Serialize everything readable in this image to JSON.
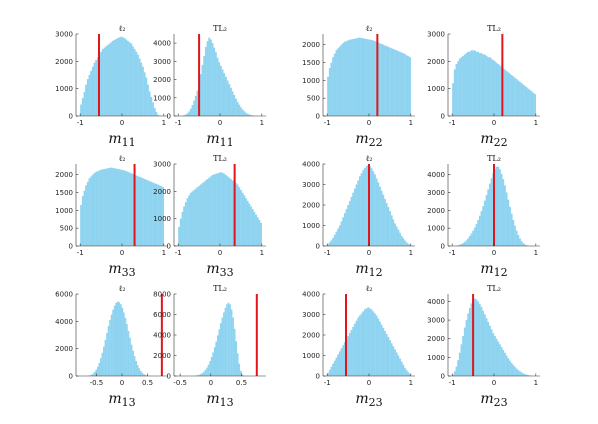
{
  "chart_data": [
    {
      "type": "bar",
      "title": "ℓ₂",
      "xlabel_main": "m",
      "xlabel_sub": "11",
      "xlim": [
        -1.1,
        1.1
      ],
      "ylim": [
        0,
        3000
      ],
      "xticks": [
        -1,
        0,
        1
      ],
      "xtick_labels": [
        "-1",
        "0",
        "1"
      ],
      "yticks": [
        0,
        1000,
        2000,
        3000
      ],
      "ytick_labels": [
        "0",
        "1000",
        "2000",
        "3000"
      ],
      "bins_start": -1.0,
      "bin_width": 0.04,
      "values": [
        420,
        650,
        880,
        1150,
        1350,
        1500,
        1650,
        1800,
        1950,
        2050,
        2150,
        2250,
        2350,
        2450,
        2500,
        2550,
        2600,
        2650,
        2700,
        2750,
        2780,
        2820,
        2850,
        2880,
        2900,
        2880,
        2850,
        2800,
        2750,
        2700,
        2650,
        2550,
        2450,
        2350,
        2250,
        2100,
        1950,
        1800,
        1600,
        1400,
        1150,
        900,
        700,
        500,
        300,
        150,
        50,
        20,
        5,
        2
      ],
      "marker_x": -0.55
    },
    {
      "type": "bar",
      "title": "TL₂",
      "xlabel_main": "m",
      "xlabel_sub": "11",
      "xlim": [
        -1.1,
        1.1
      ],
      "ylim": [
        0,
        4500
      ],
      "xticks": [
        -1,
        0,
        1
      ],
      "xtick_labels": [
        "-1",
        "0",
        "1"
      ],
      "yticks": [
        0,
        1000,
        2000,
        3000,
        4000
      ],
      "ytick_labels": [
        "0",
        "1000",
        "2000",
        "3000",
        "4000"
      ],
      "bins_start": -1.0,
      "bin_width": 0.04,
      "values": [
        5,
        10,
        20,
        40,
        80,
        150,
        250,
        400,
        600,
        850,
        1100,
        1400,
        1800,
        2300,
        2800,
        3300,
        3800,
        4100,
        4300,
        4200,
        4000,
        3750,
        3500,
        3200,
        2950,
        2750,
        2550,
        2350,
        2150,
        1950,
        1750,
        1550,
        1350,
        1150,
        950,
        780,
        620,
        480,
        360,
        260,
        180,
        120,
        80,
        50,
        30,
        15,
        8,
        4,
        2,
        1
      ],
      "marker_x": -0.5
    },
    {
      "type": "bar",
      "title": "ℓ₂",
      "xlabel_main": "m",
      "xlabel_sub": "22",
      "xlim": [
        -1.1,
        1.1
      ],
      "ylim": [
        0,
        2300
      ],
      "xticks": [
        -1,
        0,
        1
      ],
      "xtick_labels": [
        "-1",
        "0",
        "1"
      ],
      "yticks": [
        0,
        500,
        1000,
        1500,
        2000
      ],
      "ytick_labels": [
        "0",
        "500",
        "1000",
        "1500",
        "2000"
      ],
      "bins_start": -1.0,
      "bin_width": 0.04,
      "values": [
        1100,
        1350,
        1500,
        1650,
        1750,
        1850,
        1900,
        1950,
        2000,
        2050,
        2080,
        2100,
        2120,
        2140,
        2150,
        2160,
        2170,
        2180,
        2190,
        2200,
        2190,
        2180,
        2170,
        2160,
        2150,
        2140,
        2130,
        2120,
        2100,
        2080,
        2060,
        2040,
        2020,
        2000,
        1980,
        1960,
        1940,
        1920,
        1900,
        1880,
        1860,
        1840,
        1820,
        1800,
        1780,
        1760,
        1740,
        1700,
        1680,
        1650
      ],
      "marker_x": 0.2
    },
    {
      "type": "bar",
      "title": "TL₂",
      "xlabel_main": "m",
      "xlabel_sub": "22",
      "xlim": [
        -1.1,
        1.1
      ],
      "ylim": [
        0,
        3000
      ],
      "xticks": [
        -1,
        0,
        1
      ],
      "xtick_labels": [
        "-1",
        "0",
        "1"
      ],
      "yticks": [
        0,
        1000,
        2000,
        3000
      ],
      "ytick_labels": [
        "0",
        "1000",
        "2000",
        "3000"
      ],
      "bins_start": -1.0,
      "bin_width": 0.04,
      "values": [
        1200,
        1700,
        1900,
        2000,
        2100,
        2150,
        2200,
        2250,
        2300,
        2350,
        2350,
        2400,
        2400,
        2400,
        2350,
        2350,
        2300,
        2300,
        2250,
        2250,
        2200,
        2150,
        2150,
        2100,
        2050,
        2000,
        1950,
        1900,
        1850,
        1800,
        1750,
        1700,
        1650,
        1600,
        1550,
        1500,
        1450,
        1400,
        1350,
        1300,
        1250,
        1200,
        1150,
        1100,
        1050,
        1000,
        950,
        900,
        850,
        800
      ],
      "marker_x": 0.2
    },
    {
      "type": "bar",
      "title": "ℓ₂",
      "xlabel_main": "m",
      "xlabel_sub": "33",
      "xlim": [
        -1.1,
        1.1
      ],
      "ylim": [
        0,
        2300
      ],
      "xticks": [
        -1,
        0,
        1
      ],
      "xtick_labels": [
        "-1",
        "0",
        "1"
      ],
      "yticks": [
        0,
        500,
        1000,
        1500,
        2000
      ],
      "ytick_labels": [
        "0",
        "500",
        "1000",
        "1500",
        "2000"
      ],
      "bins_start": -1.0,
      "bin_width": 0.04,
      "values": [
        1150,
        1400,
        1550,
        1700,
        1800,
        1900,
        1950,
        2000,
        2050,
        2080,
        2100,
        2120,
        2140,
        2150,
        2160,
        2170,
        2180,
        2190,
        2200,
        2190,
        2180,
        2170,
        2160,
        2150,
        2140,
        2130,
        2120,
        2100,
        2080,
        2060,
        2040,
        2020,
        2000,
        1980,
        1960,
        1940,
        1920,
        1900,
        1880,
        1860,
        1840,
        1820,
        1800,
        1780,
        1760,
        1740,
        1720,
        1700,
        1680,
        1650
      ],
      "marker_x": 0.3
    },
    {
      "type": "bar",
      "title": "TL₂",
      "xlabel_main": "m",
      "xlabel_sub": "33",
      "xlim": [
        -1.1,
        1.1
      ],
      "ylim": [
        0,
        3000
      ],
      "xticks": [
        -1,
        0,
        1
      ],
      "xtick_labels": [
        "-1",
        "0",
        "1"
      ],
      "yticks": [
        0,
        1000,
        2000,
        3000
      ],
      "ytick_labels": [
        "0",
        "1000",
        "2000",
        "3000"
      ],
      "bins_start": -1.0,
      "bin_width": 0.04,
      "values": [
        700,
        1000,
        1250,
        1450,
        1600,
        1750,
        1850,
        1950,
        2000,
        2050,
        2100,
        2150,
        2200,
        2250,
        2300,
        2350,
        2400,
        2450,
        2500,
        2550,
        2600,
        2620,
        2640,
        2660,
        2680,
        2700,
        2680,
        2650,
        2600,
        2550,
        2500,
        2450,
        2400,
        2350,
        2300,
        2250,
        2150,
        2050,
        1950,
        1850,
        1750,
        1650,
        1550,
        1450,
        1350,
        1250,
        1150,
        1050,
        950,
        850
      ],
      "marker_x": 0.35
    },
    {
      "type": "bar",
      "title": "ℓ₂",
      "xlabel_main": "m",
      "xlabel_sub": "12",
      "xlim": [
        -1.1,
        1.1
      ],
      "ylim": [
        0,
        4000
      ],
      "xticks": [
        -1,
        0,
        1
      ],
      "xtick_labels": [
        "-1",
        "0",
        "1"
      ],
      "yticks": [
        0,
        1000,
        2000,
        3000,
        4000
      ],
      "ytick_labels": [
        "0",
        "1000",
        "2000",
        "3000",
        "4000"
      ],
      "bins_start": -1.0,
      "bin_width": 0.04,
      "values": [
        100,
        180,
        280,
        400,
        550,
        700,
        850,
        1000,
        1200,
        1400,
        1600,
        1800,
        2000,
        2200,
        2400,
        2600,
        2800,
        3000,
        3200,
        3400,
        3550,
        3700,
        3800,
        3900,
        3950,
        3900,
        3800,
        3650,
        3500,
        3300,
        3100,
        2900,
        2700,
        2500,
        2300,
        2100,
        1900,
        1700,
        1500,
        1300,
        1100,
        950,
        800,
        650,
        500,
        380,
        270,
        180,
        110,
        60
      ],
      "marker_x": 0.0
    },
    {
      "type": "bar",
      "title": "TL₂",
      "xlabel_main": "m",
      "xlabel_sub": "12",
      "xlim": [
        -1.1,
        1.1
      ],
      "ylim": [
        0,
        4600
      ],
      "xticks": [
        -1,
        0,
        1
      ],
      "xtick_labels": [
        "-1",
        "0",
        "1"
      ],
      "yticks": [
        0,
        1000,
        2000,
        3000,
        4000
      ],
      "ytick_labels": [
        "0",
        "1000",
        "2000",
        "3000",
        "4000"
      ],
      "bins_start": -1.0,
      "bin_width": 0.04,
      "values": [
        5,
        10,
        20,
        40,
        70,
        110,
        160,
        230,
        320,
        430,
        560,
        700,
        860,
        1040,
        1240,
        1460,
        1700,
        1960,
        2240,
        2540,
        2860,
        3180,
        3500,
        3800,
        4080,
        4300,
        4450,
        4450,
        4300,
        4050,
        3750,
        3400,
        3000,
        2600,
        2200,
        1820,
        1460,
        1140,
        860,
        620,
        420,
        270,
        160,
        90,
        45,
        20,
        10,
        5,
        2,
        1
      ],
      "marker_x": 0.0
    },
    {
      "type": "bar",
      "title": "ℓ₂",
      "xlabel_main": "m",
      "xlabel_sub": "13",
      "xlim": [
        -0.9,
        0.9
      ],
      "ylim": [
        0,
        6000
      ],
      "xticks": [
        -0.5,
        0,
        0.5
      ],
      "xtick_labels": [
        "-0.5",
        "0",
        "0.5"
      ],
      "yticks": [
        0,
        2000,
        4000,
        6000
      ],
      "ytick_labels": [
        "0",
        "2000",
        "4000",
        "6000"
      ],
      "bins_start": -0.7,
      "bin_width": 0.03,
      "values": [
        10,
        25,
        50,
        100,
        180,
        300,
        460,
        680,
        960,
        1300,
        1700,
        2150,
        2650,
        3150,
        3650,
        4100,
        4500,
        4850,
        5150,
        5350,
        5450,
        5400,
        5250,
        5000,
        4650,
        4250,
        3800,
        3300,
        2800,
        2300,
        1850,
        1450,
        1100,
        800,
        560,
        370,
        230,
        140,
        80,
        40,
        20,
        10,
        5
      ],
      "marker_x": 0.78
    },
    {
      "type": "bar",
      "title": "TL₂",
      "xlabel_main": "m",
      "xlabel_sub": "13",
      "xlim": [
        -0.6,
        0.9
      ],
      "ylim": [
        0,
        8000
      ],
      "xticks": [
        -0.5,
        0,
        0.5
      ],
      "xtick_labels": [
        "-0.5",
        "0",
        "0.5"
      ],
      "yticks": [
        0,
        2000,
        4000,
        6000,
        8000
      ],
      "ytick_labels": [
        "0",
        "2000",
        "4000",
        "6000",
        "8000"
      ],
      "bins_start": -0.3,
      "bin_width": 0.025,
      "values": [
        10,
        20,
        40,
        70,
        120,
        190,
        290,
        420,
        600,
        830,
        1100,
        1450,
        1850,
        2300,
        2800,
        3350,
        3950,
        4550,
        5150,
        5700,
        6200,
        6650,
        7000,
        7150,
        7000,
        6500,
        5700,
        4600,
        3400,
        2200,
        1200,
        500,
        150,
        40
      ],
      "marker_x": 0.75
    },
    {
      "type": "bar",
      "title": "ℓ₂",
      "xlabel_main": "m",
      "xlabel_sub": "23",
      "xlim": [
        -1.1,
        1.1
      ],
      "ylim": [
        0,
        4000
      ],
      "xticks": [
        -1,
        0,
        1
      ],
      "xtick_labels": [
        "-1",
        "0",
        "1"
      ],
      "yticks": [
        0,
        1000,
        2000,
        3000,
        4000
      ],
      "ytick_labels": [
        "0",
        "1000",
        "2000",
        "3000",
        "4000"
      ],
      "bins_start": -1.0,
      "bin_width": 0.04,
      "values": [
        150,
        300,
        450,
        600,
        750,
        900,
        1050,
        1200,
        1350,
        1500,
        1650,
        1800,
        1950,
        2100,
        2250,
        2400,
        2550,
        2700,
        2850,
        2950,
        3050,
        3150,
        3250,
        3300,
        3350,
        3300,
        3250,
        3150,
        3050,
        2950,
        2800,
        2650,
        2500,
        2350,
        2200,
        2050,
        1900,
        1750,
        1600,
        1450,
        1300,
        1150,
        1000,
        850,
        700,
        550,
        400,
        280,
        180,
        100
      ],
      "marker_x": -0.55
    },
    {
      "type": "bar",
      "title": "TL₂",
      "xlabel_main": "m",
      "xlabel_sub": "23",
      "xlim": [
        -1.1,
        1.1
      ],
      "ylim": [
        0,
        4400
      ],
      "xticks": [
        -1,
        0,
        1
      ],
      "xtick_labels": [
        "-1",
        "0",
        "1"
      ],
      "yticks": [
        0,
        1000,
        2000,
        3000,
        4000
      ],
      "ytick_labels": [
        "0",
        "1000",
        "2000",
        "3000",
        "4000"
      ],
      "bins_start": -1.0,
      "bin_width": 0.04,
      "values": [
        80,
        250,
        500,
        850,
        1250,
        1700,
        2150,
        2600,
        3000,
        3350,
        3650,
        3900,
        4050,
        4150,
        4100,
        4000,
        3850,
        3700,
        3500,
        3300,
        3100,
        2900,
        2700,
        2500,
        2300,
        2150,
        2000,
        1850,
        1700,
        1550,
        1400,
        1250,
        1100,
        950,
        820,
        700,
        590,
        490,
        400,
        320,
        250,
        190,
        140,
        100,
        70,
        45,
        28,
        16,
        8,
        4
      ],
      "marker_x": -0.5
    }
  ]
}
